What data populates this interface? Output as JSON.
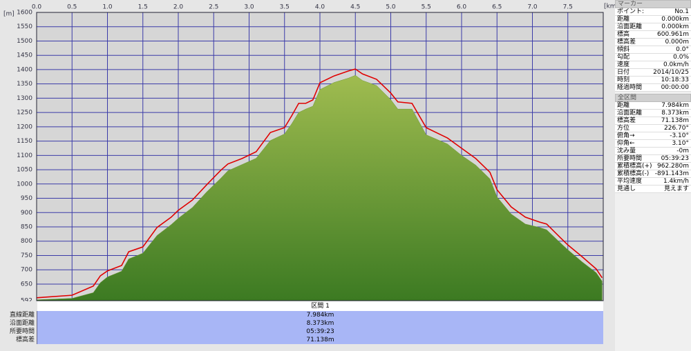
{
  "chart_data": {
    "type": "area-line",
    "y_unit": "[m]",
    "x_unit": "[km]",
    "x": [
      0,
      0.5,
      0.8,
      0.9,
      1.0,
      1.2,
      1.3,
      1.5,
      1.7,
      1.9,
      2.0,
      2.2,
      2.4,
      2.6,
      2.7,
      2.9,
      3.1,
      3.3,
      3.5,
      3.6,
      3.7,
      3.8,
      3.9,
      4.0,
      4.2,
      4.4,
      4.5,
      4.6,
      4.8,
      5.0,
      5.1,
      5.3,
      5.5,
      5.8,
      6.0,
      6.2,
      6.4,
      6.5,
      6.7,
      6.9,
      7.1,
      7.2,
      7.4,
      7.5,
      7.7,
      7.9,
      7.984
    ],
    "series": [
      {
        "color": "#e00000",
        "values": [
          602,
          611,
          643,
          679,
          696,
          715,
          763,
          780,
          848,
          884,
          908,
          944,
          997,
          1048,
          1070,
          1089,
          1113,
          1180,
          1197,
          1238,
          1282,
          1282,
          1294,
          1354,
          1378,
          1395,
          1402,
          1385,
          1366,
          1318,
          1287,
          1282,
          1197,
          1161,
          1125,
          1089,
          1041,
          980,
          920,
          884,
          867,
          860,
          811,
          787,
          746,
          703,
          672
        ]
      },
      {
        "color": "#6f9a35",
        "values": [
          595,
          600,
          620,
          655,
          675,
          695,
          738,
          758,
          820,
          858,
          880,
          918,
          972,
          1020,
          1046,
          1068,
          1090,
          1152,
          1175,
          1210,
          1250,
          1262,
          1272,
          1330,
          1355,
          1370,
          1380,
          1362,
          1344,
          1295,
          1262,
          1262,
          1172,
          1140,
          1100,
          1066,
          1018,
          955,
          895,
          860,
          848,
          840,
          793,
          770,
          728,
          690,
          660
        ]
      }
    ],
    "xlim": [
      0,
      8
    ],
    "ylim": [
      592,
      1600
    ],
    "xticks": [
      {
        "value": 0,
        "label": "0.0"
      },
      0.5,
      {
        "value": 1,
        "label": "1.0"
      },
      1.5,
      {
        "value": 2,
        "label": "2.0"
      },
      2.5,
      {
        "value": 3,
        "label": "3.0"
      },
      3.5,
      {
        "value": 4,
        "label": "4.0"
      },
      4.5,
      {
        "value": 5,
        "label": "5.0"
      },
      5.5,
      {
        "value": 6,
        "label": "6.0"
      },
      6.5,
      {
        "value": 7,
        "label": "7.0"
      },
      7.5
    ],
    "yticks": [
      592,
      650,
      700,
      750,
      800,
      850,
      900,
      950,
      1000,
      1050,
      1100,
      1150,
      1200,
      1250,
      1300,
      1350,
      1400,
      1450,
      1500,
      1550,
      1600
    ],
    "grid": true
  },
  "section_table": {
    "header": "区間 1",
    "rows": [
      [
        "直線距離",
        "7.984km"
      ],
      [
        "沿面距離",
        "8.373km"
      ],
      [
        "所要時間",
        "05:39:23"
      ],
      [
        "標高差",
        "71.138m"
      ]
    ]
  },
  "side_panel": {
    "marker_title": "マーカー",
    "marker_rows": [
      [
        "ポイント:",
        "No.1"
      ],
      [
        "距離",
        "0.000km"
      ],
      [
        "沿面距離",
        "0.000km"
      ],
      [
        "標高",
        "600.961m"
      ],
      [
        "標高差",
        "0.000m"
      ],
      [
        "傾斜",
        "0.0°"
      ],
      [
        "勾配",
        "0.0%"
      ],
      [
        "速度",
        "0.0km/h"
      ],
      [
        "日付",
        "2014/10/25"
      ],
      [
        "時刻",
        "10:18:33"
      ],
      [
        "経過時間",
        "00:00:00"
      ]
    ],
    "total_title": "全区間",
    "total_rows": [
      [
        "距離",
        "7.984km"
      ],
      [
        "沿面距離",
        "8.373km"
      ],
      [
        "標高差",
        "71.138m"
      ],
      [
        "方位",
        "226.70°"
      ],
      [
        "俯角→",
        "-3.10°"
      ],
      [
        "仰角←",
        "3.10°"
      ],
      [
        "沈み量",
        "-0m"
      ],
      [
        "所要時間",
        "05:39:23"
      ],
      [
        "累積標高(+)",
        "962.280m"
      ],
      [
        "累積標高(-)",
        "-891.143m"
      ],
      [
        "平均速度",
        "1.4km/h"
      ],
      [
        "見通し",
        "見えます"
      ]
    ]
  }
}
